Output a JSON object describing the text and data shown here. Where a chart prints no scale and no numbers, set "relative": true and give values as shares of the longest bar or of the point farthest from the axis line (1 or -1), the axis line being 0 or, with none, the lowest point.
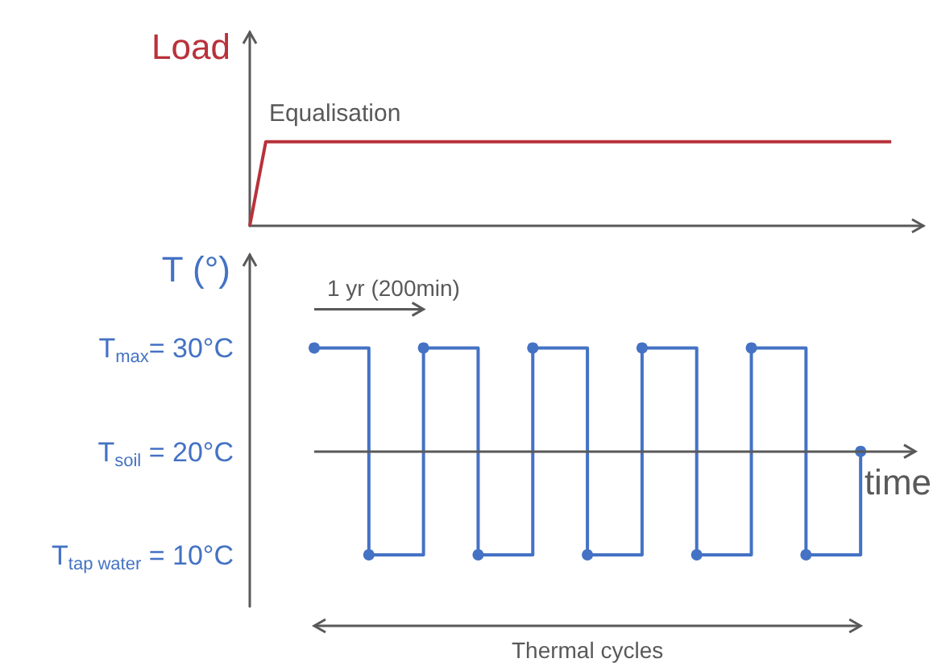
{
  "chart_data": [
    {
      "type": "line",
      "relative": true,
      "ylabel": "Load",
      "annotations": [
        "Equalisation"
      ],
      "categories": [
        null,
        null,
        null,
        null,
        null,
        null,
        null,
        null,
        null,
        null,
        null,
        null,
        null,
        null,
        null,
        null,
        null,
        null,
        null,
        null,
        null,
        null,
        null,
        null,
        null,
        null,
        null,
        null,
        null,
        null,
        null,
        null,
        null,
        null,
        null,
        null,
        null,
        null,
        null,
        null,
        null,
        null,
        null
      ],
      "series": [
        {
          "color": "#b8323a",
          "values": [
            0,
            1,
            1,
            1,
            1,
            1,
            1,
            1,
            1,
            1,
            1,
            1,
            1,
            1,
            1,
            1,
            1,
            1,
            1,
            1,
            1,
            1,
            1,
            1,
            1,
            1,
            1,
            1,
            1,
            1,
            1,
            1,
            1,
            1,
            1,
            1,
            1,
            1,
            1,
            1,
            1,
            null,
            null
          ]
        }
      ],
      "marker": "none",
      "grid": false,
      "tick_labels": false
    },
    {
      "type": "step",
      "ylabel": "T (°)",
      "xlabel": "time",
      "annotations": [
        "1 yr (200min)",
        "Thermal cycles"
      ],
      "categories": [
        null,
        null,
        null,
        null,
        null,
        null,
        null,
        null,
        null,
        null,
        null
      ],
      "series": [
        {
          "color": "#4472c4",
          "values": [
            30,
            10,
            30,
            10,
            30,
            10,
            30,
            10,
            30,
            10,
            20
          ]
        }
      ],
      "ylim": [
        5,
        39
      ],
      "yticks": [
        {
          "value": 10,
          "label": "T$_{tap water}$ = 10°C"
        },
        {
          "value": 20,
          "label": "T$_{soil}$ = 20°C"
        },
        {
          "value": 30,
          "label": "T$_{max}$= 30°C"
        }
      ],
      "ref_lines": [
        {
          "axis": "y",
          "value": 20,
          "label": null,
          "color": "#595959",
          "line_style": "solid"
        }
      ],
      "marker": "circle",
      "grid": false,
      "tick_labels": "y"
    }
  ]
}
